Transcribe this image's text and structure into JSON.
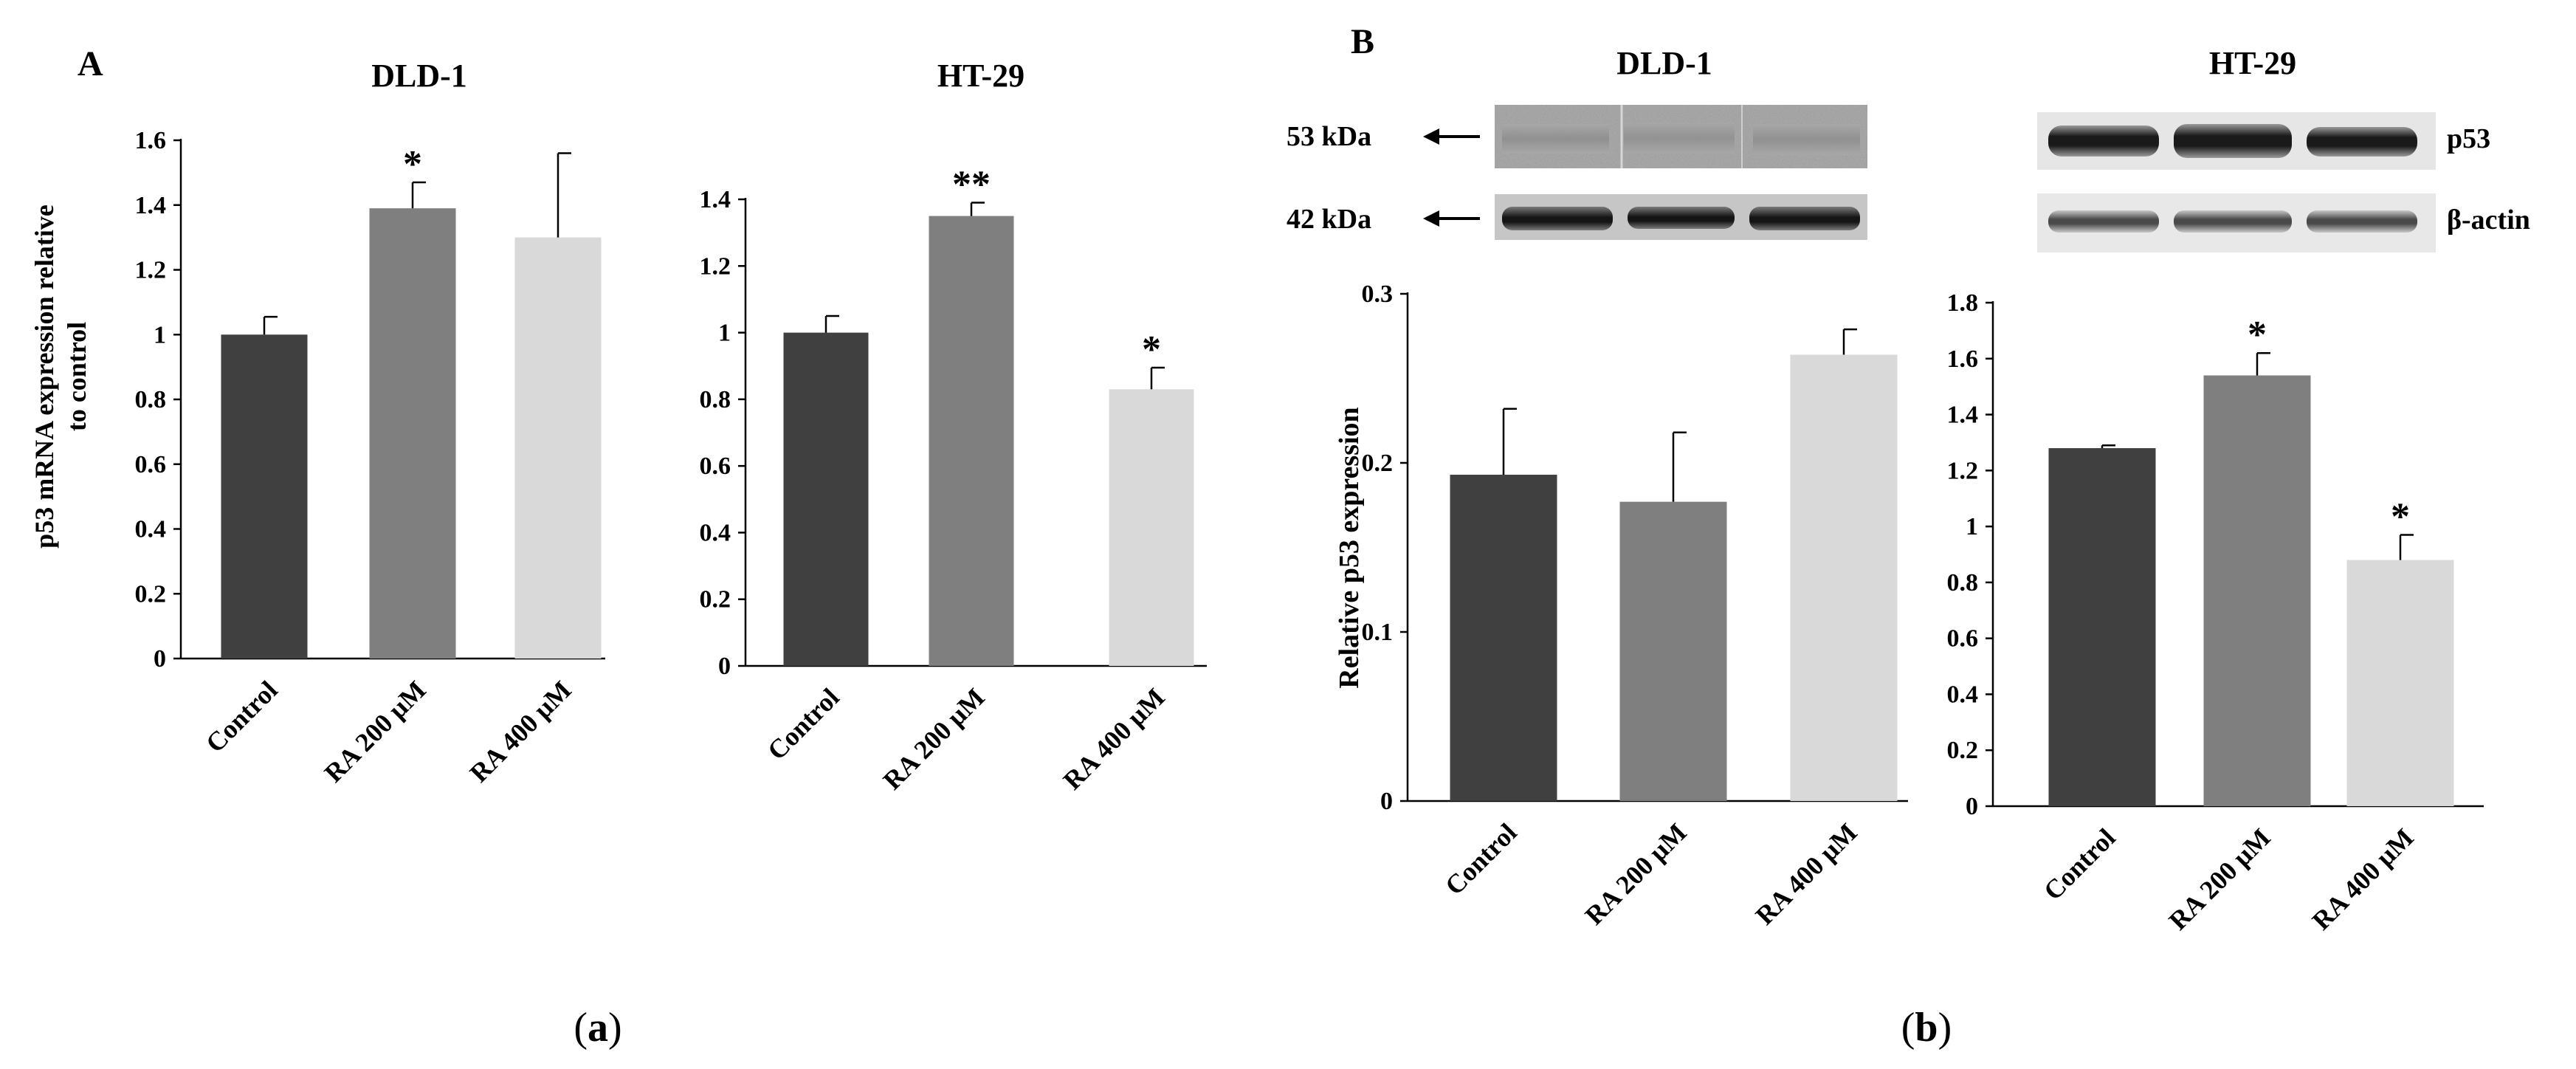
{
  "panels": {
    "a": {
      "letter": "A",
      "caption_letter": "a"
    },
    "b": {
      "letter": "B",
      "caption_letter": "b"
    }
  },
  "colors": {
    "control": "#404040",
    "ra200": "#7f7f7f",
    "ra400": "#d9d9d9",
    "axis": "#000000"
  },
  "blot": {
    "marker_top": "53 kDa",
    "marker_bottom": "42 kDa",
    "label_top": "p53",
    "label_bottom": "β-actin"
  },
  "chart_data": [
    {
      "id": "a-dld1",
      "type": "bar",
      "title": "DLD-1",
      "ylabel": "p53 mRNA expression relative to control",
      "ylabel_lines": [
        "p53 mRNA expression relative",
        "to control"
      ],
      "categories": [
        "Control",
        "RA 200 μM",
        "RA 400 μM"
      ],
      "values": [
        1.0,
        1.39,
        1.3
      ],
      "errors": [
        0.055,
        0.08,
        0.26
      ],
      "significance": [
        "",
        "*",
        ""
      ],
      "ylim": [
        0,
        1.6
      ],
      "yticks": [
        0,
        0.2,
        0.4,
        0.6,
        0.8,
        1,
        1.2,
        1.4,
        1.6
      ],
      "yticklabels": [
        "0",
        "0.2",
        "0.4",
        "0.6",
        "0.8",
        "1",
        "1.2",
        "1.4",
        "1.6"
      ]
    },
    {
      "id": "a-ht29",
      "type": "bar",
      "title": "HT-29",
      "ylabel": "",
      "categories": [
        "Control",
        "RA 200 μM",
        "RA 400 μM"
      ],
      "values": [
        1.0,
        1.35,
        0.83
      ],
      "errors": [
        0.05,
        0.04,
        0.065
      ],
      "significance": [
        "",
        "**",
        "*"
      ],
      "ylim": [
        0,
        1.4
      ],
      "yticks": [
        0,
        0.2,
        0.4,
        0.6,
        0.8,
        1,
        1.2,
        1.4
      ],
      "yticklabels": [
        "0",
        "0.2",
        "0.4",
        "0.6",
        "0.8",
        "1",
        "1.2",
        "1.4"
      ]
    },
    {
      "id": "b-dld1",
      "type": "bar",
      "title": "DLD-1",
      "ylabel": "Relative p53 expression",
      "categories": [
        "Control",
        "RA 200 μM",
        "RA 400 μM"
      ],
      "values": [
        0.193,
        0.177,
        0.264
      ],
      "errors": [
        0.039,
        0.041,
        0.015
      ],
      "significance": [
        "",
        "",
        ""
      ],
      "ylim": [
        0,
        0.3
      ],
      "yticks": [
        0,
        0.1,
        0.2,
        0.3
      ],
      "yticklabels": [
        "0",
        "0.1",
        "0.2",
        "0.3"
      ]
    },
    {
      "id": "b-ht29",
      "type": "bar",
      "title": "HT-29",
      "ylabel": "",
      "categories": [
        "Control",
        "RA 200 μM",
        "RA 400 μM"
      ],
      "values": [
        1.28,
        1.54,
        0.88
      ],
      "errors": [
        0.01,
        0.08,
        0.09
      ],
      "significance": [
        "",
        "*",
        "*"
      ],
      "ylim": [
        0,
        1.8
      ],
      "yticks": [
        0,
        0.2,
        0.4,
        0.6,
        0.8,
        1,
        1.2,
        1.4,
        1.6,
        1.8
      ],
      "yticklabels": [
        "0",
        "0.2",
        "0.4",
        "0.6",
        "0.8",
        "1",
        "1.2",
        "1.4",
        "1.6",
        "1.8"
      ]
    }
  ]
}
